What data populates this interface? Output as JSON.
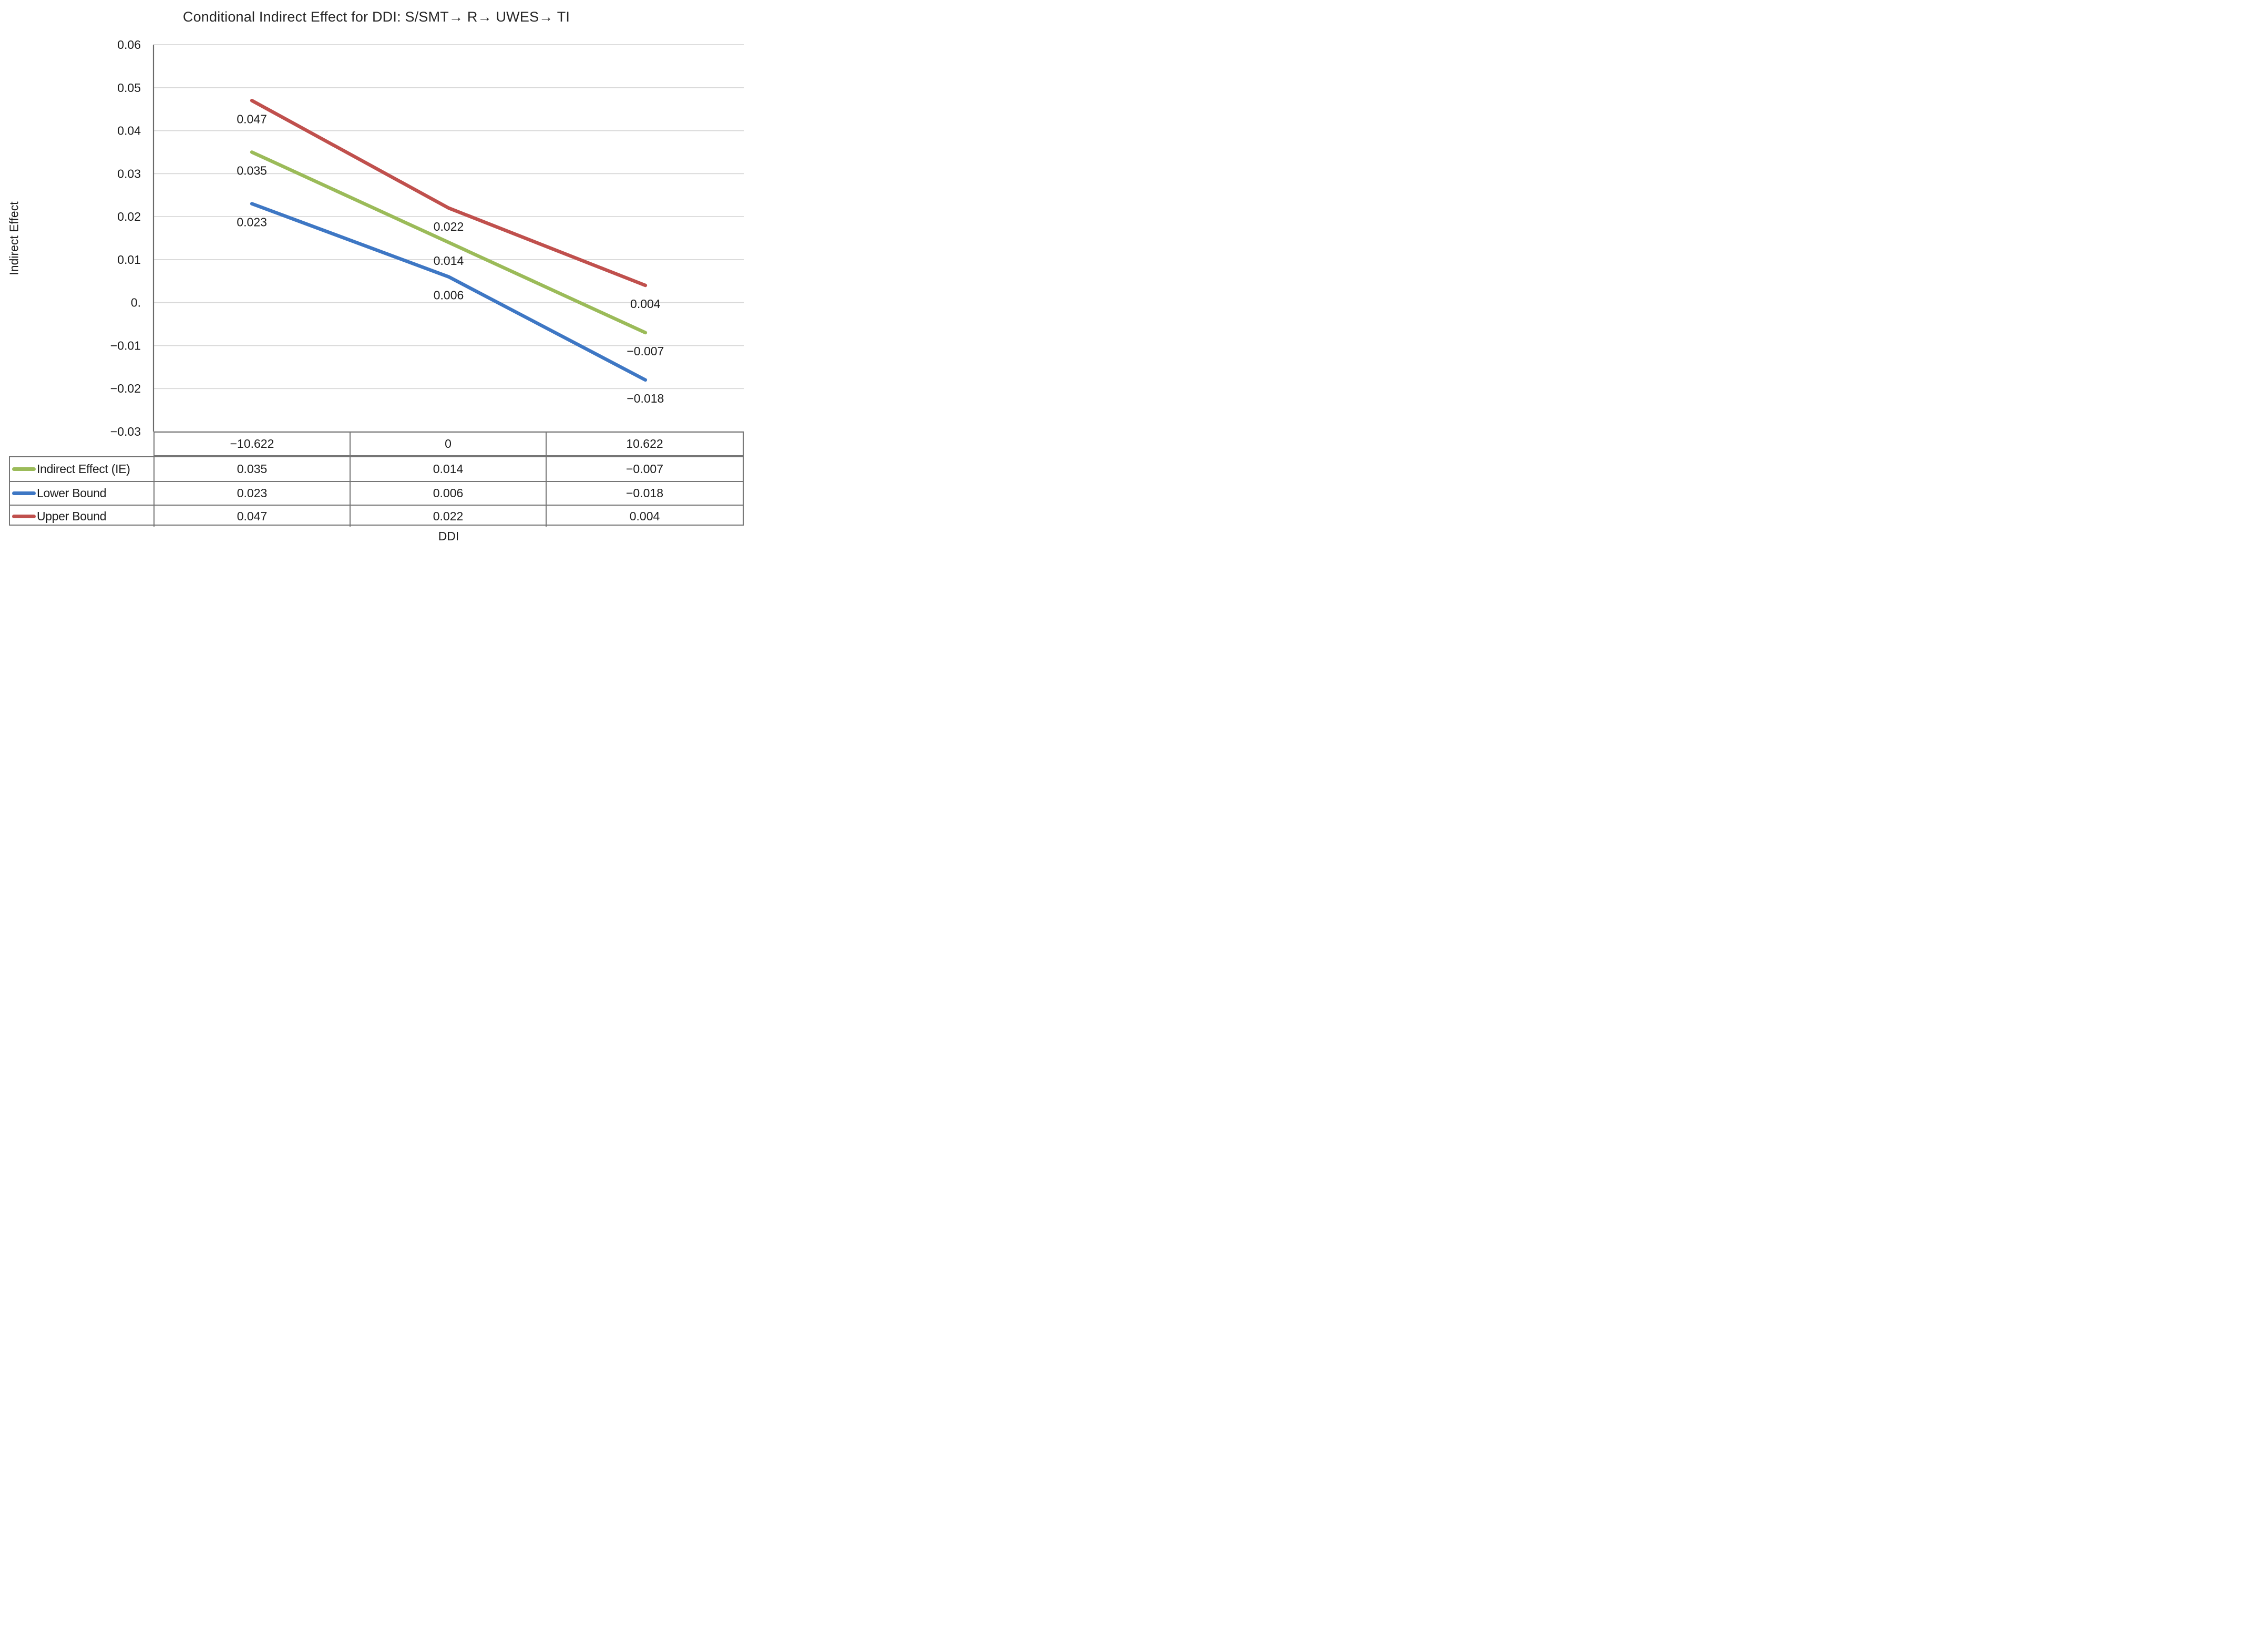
{
  "chart_title": "Conditional Indirect Effect for DDI: S/SMT→ R→ UWES→ TI",
  "chart_data": {
    "type": "line",
    "title": "Conditional Indirect Effect for DDI: S/SMT→ R→ UWES→ TI",
    "xlabel": "DDI",
    "ylabel": "Indirect Effect",
    "categories": [
      -10.622,
      0,
      10.622
    ],
    "categories_display": [
      "−10.622",
      "0",
      "10.622"
    ],
    "ylim": [
      -0.03,
      0.06
    ],
    "grid": true,
    "legend_position": "data-table-left",
    "yticks": [
      {
        "label": "0.06",
        "value": 0.06
      },
      {
        "label": "0.05",
        "value": 0.05
      },
      {
        "label": "0.04",
        "value": 0.04
      },
      {
        "label": "0.03",
        "value": 0.03
      },
      {
        "label": "0.02",
        "value": 0.02
      },
      {
        "label": "0.01",
        "value": 0.01
      },
      {
        "label": "0.",
        "value": 0
      },
      {
        "label": "−0.01",
        "value": -0.01
      },
      {
        "label": "−0.02",
        "value": -0.02
      },
      {
        "label": "−0.03",
        "value": -0.03
      }
    ],
    "series": [
      {
        "name": "Indirect Effect (IE)",
        "color": "#9BBB59",
        "values": [
          0.035,
          0.014,
          -0.007
        ],
        "labels": [
          "0.035",
          "0.014",
          "−0.007"
        ]
      },
      {
        "name": "Lower Bound",
        "color": "#3E77C4",
        "values": [
          0.023,
          0.006,
          -0.018
        ],
        "labels": [
          "0.023",
          "0.006",
          "−0.018"
        ]
      },
      {
        "name": "Upper Bound",
        "color": "#C0504D",
        "values": [
          0.047,
          0.022,
          0.004
        ],
        "labels": [
          "0.047",
          "0.022",
          "0.004"
        ]
      }
    ],
    "colors": {
      "gridline": "#d9d9d9",
      "axis_line": "#6a6a6a",
      "table_border": "#757575",
      "text": "#1c1c1c"
    }
  }
}
